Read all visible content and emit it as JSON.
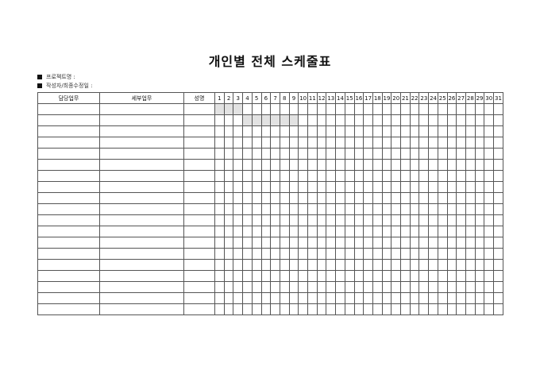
{
  "title": "개인별 전체 스케줄표",
  "meta": {
    "project_label": "프로젝트명 :",
    "author_label": "작성자/최종수정일 :"
  },
  "table": {
    "headers": {
      "task": "담당업무",
      "detail": "세부업무",
      "name": "성명"
    },
    "days": [
      "1",
      "2",
      "3",
      "4",
      "5",
      "6",
      "7",
      "8",
      "9",
      "10",
      "11",
      "12",
      "13",
      "14",
      "15",
      "16",
      "17",
      "18",
      "19",
      "20",
      "21",
      "22",
      "23",
      "24",
      "25",
      "26",
      "27",
      "28",
      "29",
      "30",
      "31"
    ],
    "row_count": 19,
    "shaded": [
      {
        "row": 1,
        "from_day": 1,
        "to_day": 3
      },
      {
        "row": 2,
        "from_day": 4,
        "to_day": 9
      }
    ],
    "shade_color": "#e2e2e2"
  }
}
